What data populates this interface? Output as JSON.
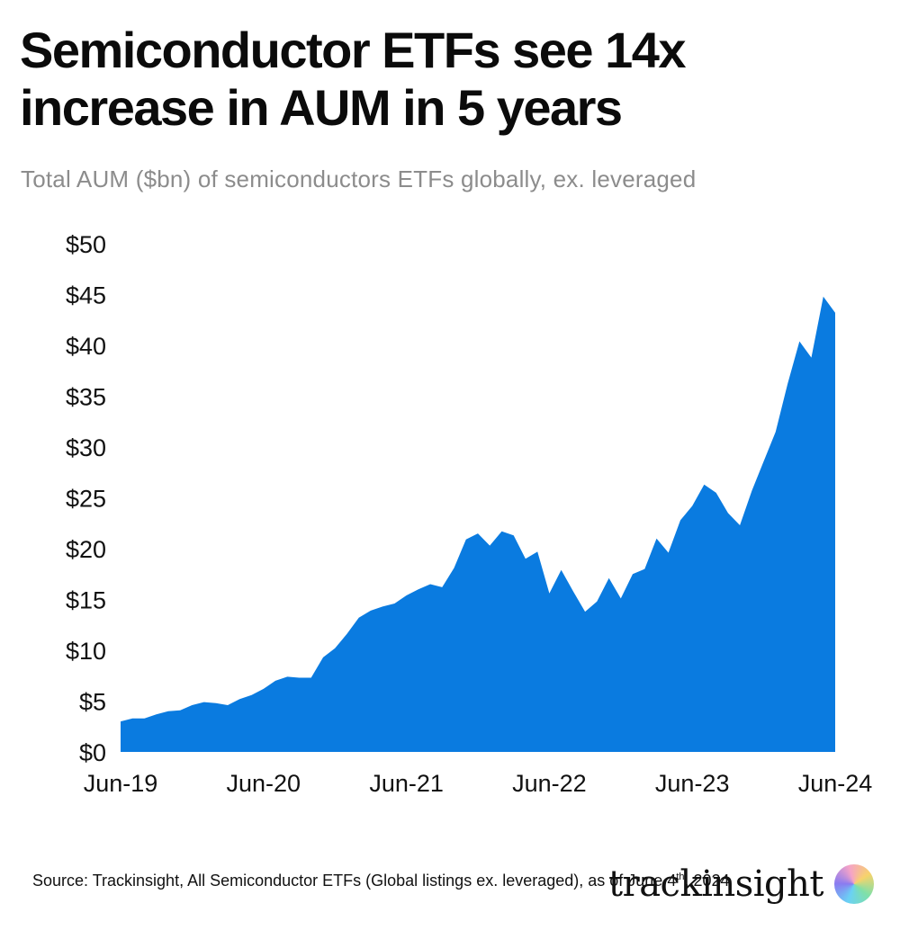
{
  "header": {
    "title": "Semiconductor ETFs see 14x increase in AUM in 5 years",
    "subtitle": "Total AUM ($bn) of semiconductors ETFs globally, ex. leveraged"
  },
  "footer": {
    "source_main": "Source: Trackinsight, All Semiconductor ETFs (Global listings ex. leveraged), as of June 4",
    "source_sup": "th",
    "source_end": ", 2024",
    "brand": "trackinsight"
  },
  "colors": {
    "area": "#0a7be0"
  },
  "chart_data": {
    "type": "area",
    "title": "Semiconductor ETFs see 14x increase in AUM in 5 years",
    "subtitle": "Total AUM ($bn) of semiconductors ETFs globally, ex. leveraged",
    "xlabel": "",
    "ylabel": "",
    "ylim": [
      0,
      50
    ],
    "y_ticks": [
      "$0",
      "$5",
      "$10",
      "$15",
      "$20",
      "$25",
      "$30",
      "$35",
      "$40",
      "$45",
      "$50"
    ],
    "x_ticks": [
      "Jun-19",
      "Jun-20",
      "Jun-21",
      "Jun-22",
      "Jun-23",
      "Jun-24"
    ],
    "grid": false,
    "legend": "none",
    "x_range": [
      "2019-06",
      "2024-06"
    ],
    "x": [
      "2019-06",
      "2019-07",
      "2019-08",
      "2019-09",
      "2019-10",
      "2019-11",
      "2019-12",
      "2020-01",
      "2020-02",
      "2020-03",
      "2020-04",
      "2020-05",
      "2020-06",
      "2020-07",
      "2020-08",
      "2020-09",
      "2020-10",
      "2020-11",
      "2020-12",
      "2021-01",
      "2021-02",
      "2021-03",
      "2021-04",
      "2021-05",
      "2021-06",
      "2021-07",
      "2021-08",
      "2021-09",
      "2021-10",
      "2021-11",
      "2021-12",
      "2022-01",
      "2022-02",
      "2022-03",
      "2022-04",
      "2022-05",
      "2022-06",
      "2022-07",
      "2022-08",
      "2022-09",
      "2022-10",
      "2022-11",
      "2022-12",
      "2023-01",
      "2023-02",
      "2023-03",
      "2023-04",
      "2023-05",
      "2023-06",
      "2023-07",
      "2023-08",
      "2023-09",
      "2023-10",
      "2023-11",
      "2023-12",
      "2024-01",
      "2024-02",
      "2024-03",
      "2024-04",
      "2024-05",
      "2024-06"
    ],
    "values": [
      3.0,
      3.3,
      3.3,
      3.7,
      4.0,
      4.1,
      4.6,
      4.9,
      4.8,
      4.6,
      5.2,
      5.6,
      6.2,
      7.0,
      7.4,
      7.3,
      7.3,
      9.3,
      10.2,
      11.6,
      13.2,
      13.9,
      14.3,
      14.6,
      15.4,
      16.0,
      16.5,
      16.2,
      18.1,
      20.9,
      21.5,
      20.3,
      21.7,
      21.3,
      19.0,
      19.7,
      15.6,
      17.9,
      15.8,
      13.8,
      14.8,
      17.1,
      15.1,
      17.5,
      18.0,
      21.0,
      19.6,
      22.8,
      24.2,
      26.3,
      25.5,
      23.5,
      22.3,
      25.7,
      28.6,
      31.5,
      36.2,
      40.4,
      38.8,
      44.8,
      43.2
    ]
  }
}
